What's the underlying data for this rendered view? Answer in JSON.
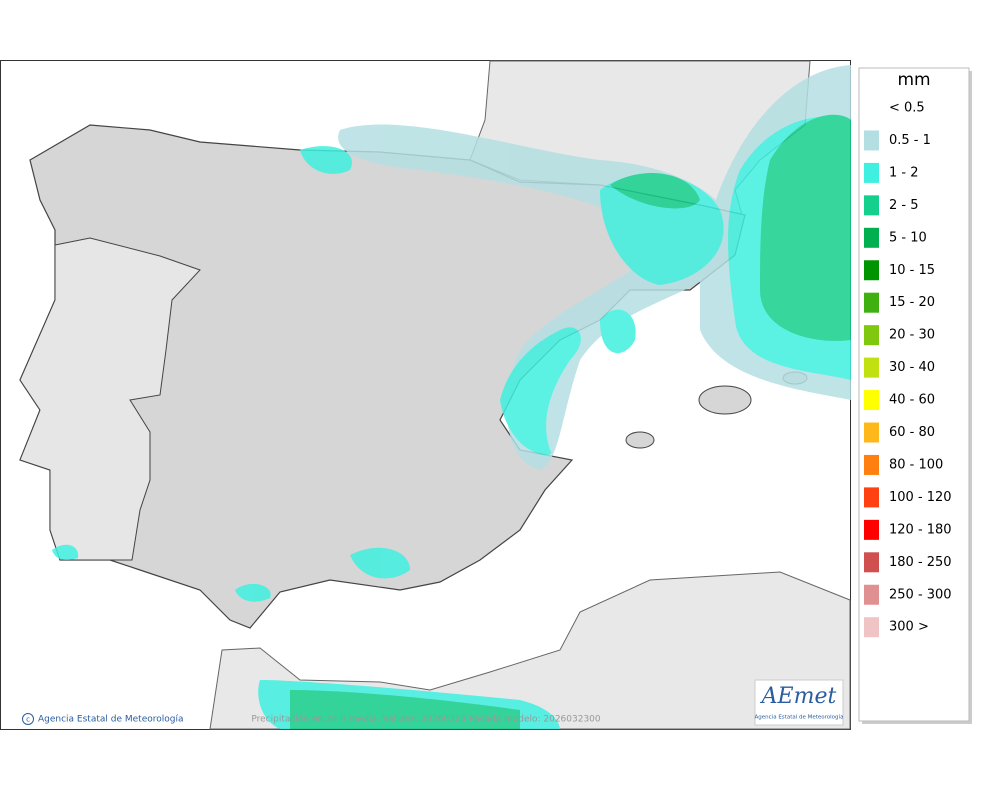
{
  "legend": {
    "title": "mm",
    "items": [
      {
        "label": "< 0.5",
        "color": "#ffffff"
      },
      {
        "label": "0.5 - 1",
        "color": "#b4dfe2"
      },
      {
        "label": "1 - 2",
        "color": "#3ff0e0"
      },
      {
        "label": "2 - 5",
        "color": "#14d08c"
      },
      {
        "label": "5 - 10",
        "color": "#00b050"
      },
      {
        "label": "10 - 15",
        "color": "#009400"
      },
      {
        "label": "15 - 20",
        "color": "#40b010"
      },
      {
        "label": "20 - 30",
        "color": "#80c810"
      },
      {
        "label": "30 - 40",
        "color": "#c0e010"
      },
      {
        "label": "40 - 60",
        "color": "#ffff00"
      },
      {
        "label": "60 - 80",
        "color": "#ffb81c"
      },
      {
        "label": "80 - 100",
        "color": "#ff8010"
      },
      {
        "label": "100 - 120",
        "color": "#ff4010"
      },
      {
        "label": "120 - 180",
        "color": "#ff0000"
      },
      {
        "label": "180 - 250",
        "color": "#d05050"
      },
      {
        "label": "250 - 300",
        "color": "#e09090"
      },
      {
        "label": "300 >",
        "color": "#f0c4c4"
      }
    ]
  },
  "footer": {
    "credit": "Agencia Estatal de Meteorología",
    "caption": "Precipitación en 24 h media. Validez: 20260323 Pasada modelo: 2026032300"
  },
  "logo": {
    "name": "AEmet",
    "subtitle": "Agencia Estatal de Meteorología"
  }
}
